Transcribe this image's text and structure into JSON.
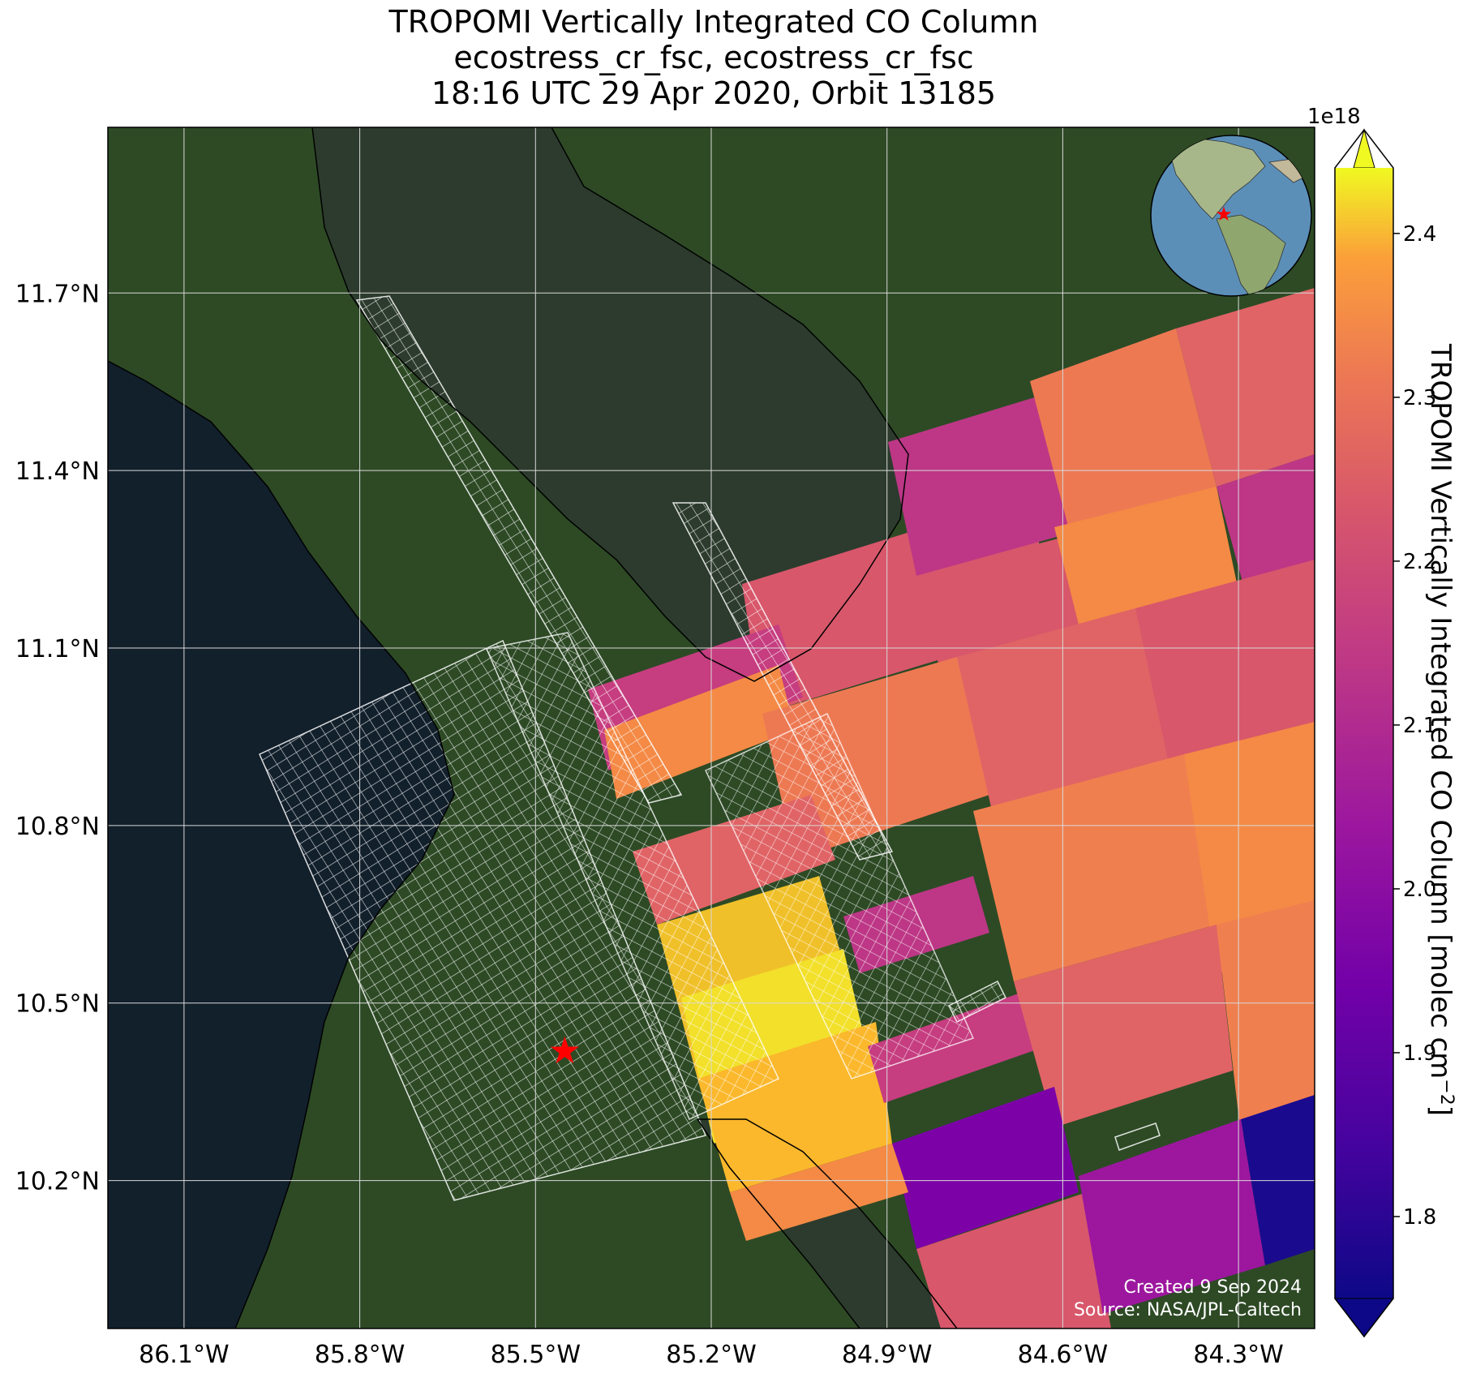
{
  "title": {
    "line1": "TROPOMI Vertically Integrated CO Column",
    "line2": "ecostress_cr_fsc, ecostress_cr_fsc",
    "line3": "18:16 UTC 29 Apr 2020, Orbit 13185"
  },
  "map": {
    "type": "satellite-basemap-with-swath-overlay",
    "lon_range": [
      -86.23,
      -84.17
    ],
    "lat_range": [
      9.95,
      11.98
    ],
    "lat_ticks": [
      "11.7°N",
      "11.4°N",
      "11.1°N",
      "10.8°N",
      "10.5°N",
      "10.2°N"
    ],
    "lon_ticks": [
      "86.1°W",
      "85.8°W",
      "85.5°W",
      "85.2°W",
      "84.9°W",
      "84.6°W",
      "84.3°W"
    ],
    "gridlines": true,
    "target_marker": {
      "symbol": "red-star-icon",
      "lat": 10.42,
      "lon": -85.45,
      "color": "#ff0000"
    },
    "inset_globe": {
      "location": "top-right",
      "marker": "red-star-icon"
    },
    "watermark": {
      "created": "Created 9 Sep 2024",
      "source": "Source: NASA/JPL-Caltech"
    }
  },
  "colorbar": {
    "label": "TROPOMI Vertically Integrated CO Column [molec cm",
    "label_sup": "−2",
    "label_end": "]",
    "multiplier": "1e18",
    "colormap": "plasma",
    "range": [
      1.75,
      2.44
    ],
    "extend": "both",
    "ticks": [
      "2.4",
      "2.3",
      "2.2",
      "2.1",
      "2.0",
      "1.9",
      "1.8"
    ]
  },
  "colors": {
    "ocean": "#12202c",
    "land": "#2d4a25",
    "lake": "#2c3b2d",
    "grid": "#d9d9d9",
    "swath_grid": "#ffffff"
  }
}
